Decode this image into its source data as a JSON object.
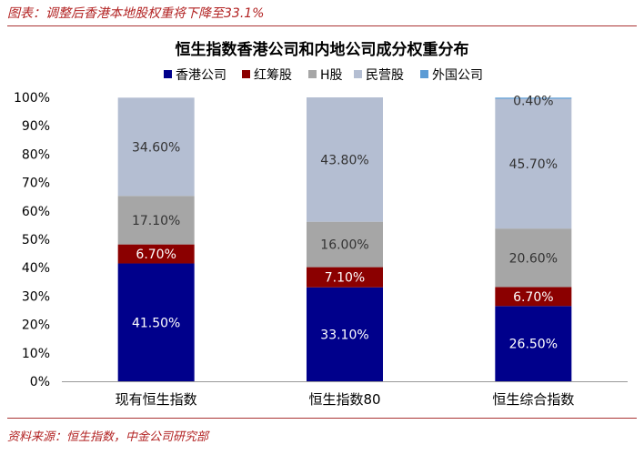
{
  "figure_caption": "图表：调整后香港本地股权重将下降至33.1%",
  "source_note": "资料来源：恒生指数，中金公司研究部",
  "chart_data": {
    "type": "bar",
    "stacked": true,
    "title": "恒生指数香港公司和内地公司成分权重分布",
    "categories": [
      "现有恒生指数",
      "恒生指数80",
      "恒生综合指数"
    ],
    "series": [
      {
        "name": "香港公司",
        "color": "#00008b",
        "label_color": "#ffffff",
        "values": [
          41.5,
          33.1,
          26.5
        ],
        "labels": [
          "41.50%",
          "33.10%",
          "26.50%"
        ]
      },
      {
        "name": "红筹股",
        "color": "#8b0000",
        "label_color": "#ffffff",
        "values": [
          6.7,
          7.1,
          6.7
        ],
        "labels": [
          "6.70%",
          "7.10%",
          "6.70%"
        ]
      },
      {
        "name": "H股",
        "color": "#a6a6a6",
        "label_color": "#333333",
        "values": [
          17.1,
          16.0,
          20.6
        ],
        "labels": [
          "17.10%",
          "16.00%",
          "20.60%"
        ]
      },
      {
        "name": "民营股",
        "color": "#b4bed2",
        "label_color": "#333333",
        "values": [
          34.6,
          43.8,
          45.7
        ],
        "labels": [
          "34.60%",
          "43.80%",
          "45.70%"
        ]
      },
      {
        "name": "外国公司",
        "color": "#5b9bd5",
        "label_color": "#333333",
        "values": [
          0,
          0,
          0.4
        ],
        "labels": [
          "",
          "",
          "0.40%"
        ]
      }
    ],
    "y_ticks": [
      "0%",
      "10%",
      "20%",
      "30%",
      "40%",
      "50%",
      "60%",
      "70%",
      "80%",
      "90%",
      "100%"
    ],
    "ylim": [
      0,
      100
    ],
    "grid": false,
    "legend_position": "top"
  }
}
